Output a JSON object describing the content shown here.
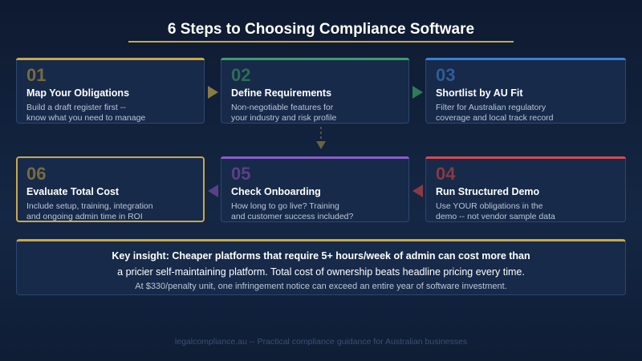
{
  "title": "6 Steps to Choosing Compliance Software",
  "steps": [
    {
      "number": "01",
      "title": "Map Your Obligations",
      "desc": [
        "Build a draft register first --",
        "know what you need to manage"
      ]
    },
    {
      "number": "02",
      "title": "Define Requirements",
      "desc": [
        "Non-negotiable features for",
        "your industry and risk profile"
      ]
    },
    {
      "number": "03",
      "title": "Shortlist by AU Fit",
      "desc": [
        "Filter for Australian regulatory",
        "coverage and local track record"
      ]
    },
    {
      "number": "04",
      "title": "Run Structured Demo",
      "desc": [
        "Use YOUR obligations in the",
        "demo -- not vendor sample data"
      ]
    },
    {
      "number": "05",
      "title": "Check Onboarding",
      "desc": [
        "How long to go live? Training",
        "and customer success included?"
      ]
    },
    {
      "number": "06",
      "title": "Evaluate Total Cost",
      "desc": [
        "Include setup, training, integration",
        "and ongoing admin time in ROI"
      ]
    }
  ],
  "insight": {
    "lines": [
      "Key insight: Cheaper platforms that require 5+ hours/week of admin can cost more than",
      "a pricier self-maintaining platform. Total cost of ownership beats headline pricing every time.",
      "At $330/penalty unit, one infringement notice can exceed an entire year of software investment."
    ]
  },
  "footer": "legalcompliance.au -- Practical compliance guidance for Australian businesses"
}
